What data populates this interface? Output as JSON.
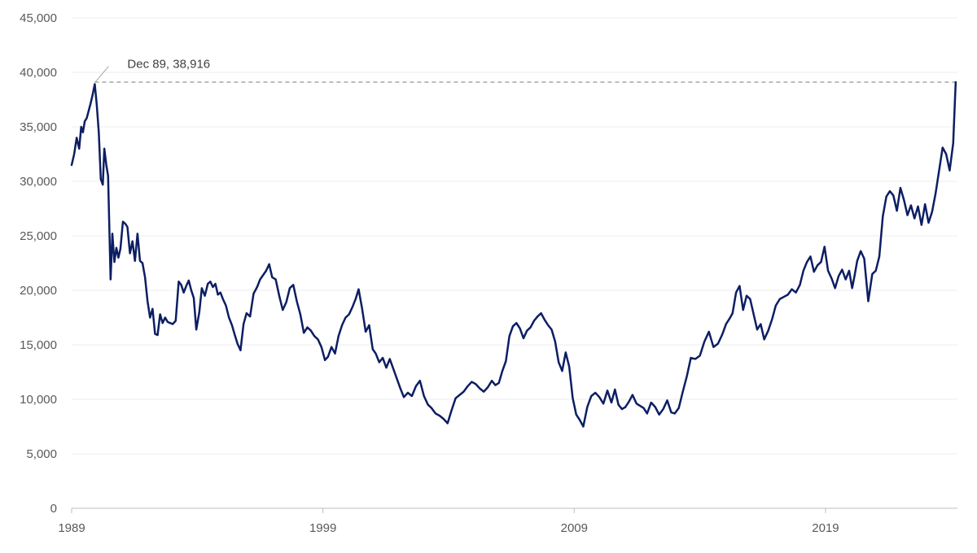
{
  "chart_data": {
    "type": "line",
    "title": "",
    "xlabel": "",
    "ylabel": "",
    "xlim": [
      1989.0,
      2024.25
    ],
    "ylim": [
      0,
      45000
    ],
    "yticks": [
      0,
      5000,
      10000,
      15000,
      20000,
      25000,
      30000,
      35000,
      40000,
      45000
    ],
    "ytick_labels": [
      "0",
      "5,000",
      "10,000",
      "15,000",
      "20,000",
      "25,000",
      "30,000",
      "35,000",
      "40,000",
      "45,000"
    ],
    "xticks": [
      1989,
      1999,
      2009,
      2019
    ],
    "xtick_labels": [
      "1989",
      "1999",
      "2009",
      "2019"
    ],
    "grid": "horizontal",
    "line_color": "#0c1e63",
    "reference_line": {
      "y": 39100,
      "style": "dashed",
      "color": "#a6a6a6"
    },
    "annotation": {
      "text": "Dec 89, 38,916",
      "x": 1989.92,
      "y": 38916
    },
    "series": [
      {
        "x": [
          1989.0,
          1989.1,
          1989.2,
          1989.3,
          1989.38,
          1989.45,
          1989.52,
          1989.6,
          1989.68,
          1989.76,
          1989.84,
          1989.92,
          1990.0,
          1990.08,
          1990.16,
          1990.24,
          1990.3,
          1990.38,
          1990.45,
          1990.55,
          1990.62,
          1990.7,
          1990.78,
          1990.86,
          1990.94,
          1991.04,
          1991.14,
          1991.22,
          1991.32,
          1991.42,
          1991.52,
          1991.62,
          1991.72,
          1991.82,
          1991.92,
          1992.02,
          1992.12,
          1992.22,
          1992.32,
          1992.42,
          1992.52,
          1992.62,
          1992.72,
          1992.82,
          1992.92,
          1993.02,
          1993.14,
          1993.26,
          1993.36,
          1993.46,
          1993.56,
          1993.66,
          1993.76,
          1993.86,
          1993.96,
          1994.08,
          1994.18,
          1994.3,
          1994.42,
          1994.52,
          1994.62,
          1994.72,
          1994.82,
          1994.92,
          1995.02,
          1995.14,
          1995.26,
          1995.38,
          1995.48,
          1995.6,
          1995.72,
          1995.84,
          1995.96,
          1996.1,
          1996.24,
          1996.38,
          1996.5,
          1996.62,
          1996.74,
          1996.86,
          1996.98,
          1997.12,
          1997.26,
          1997.4,
          1997.54,
          1997.68,
          1997.82,
          1997.96,
          1998.1,
          1998.24,
          1998.38,
          1998.52,
          1998.66,
          1998.8,
          1998.94,
          1999.08,
          1999.2,
          1999.34,
          1999.48,
          1999.62,
          1999.76,
          1999.9,
          2000.04,
          2000.18,
          2000.3,
          2000.42,
          2000.56,
          2000.7,
          2000.84,
          2000.98,
          2001.1,
          2001.24,
          2001.38,
          2001.52,
          2001.66,
          2001.8,
          2001.94,
          2002.08,
          2002.22,
          2002.38,
          2002.54,
          2002.7,
          2002.86,
          2003.02,
          2003.18,
          2003.32,
          2003.48,
          2003.64,
          2003.8,
          2003.96,
          2004.12,
          2004.28,
          2004.44,
          2004.6,
          2004.76,
          2004.92,
          2005.08,
          2005.24,
          2005.4,
          2005.56,
          2005.72,
          2005.86,
          2006.0,
          2006.14,
          2006.28,
          2006.42,
          2006.56,
          2006.7,
          2006.84,
          2006.98,
          2007.12,
          2007.26,
          2007.4,
          2007.54,
          2007.68,
          2007.82,
          2007.96,
          2008.1,
          2008.24,
          2008.38,
          2008.52,
          2008.66,
          2008.8,
          2008.94,
          2009.08,
          2009.22,
          2009.36,
          2009.52,
          2009.68,
          2009.84,
          2010.0,
          2010.16,
          2010.32,
          2010.48,
          2010.62,
          2010.76,
          2010.9,
          2011.04,
          2011.18,
          2011.32,
          2011.48,
          2011.62,
          2011.76,
          2011.9,
          2012.06,
          2012.22,
          2012.38,
          2012.54,
          2012.7,
          2012.86,
          2013.0,
          2013.16,
          2013.32,
          2013.48,
          2013.64,
          2013.82,
          2014.0,
          2014.18,
          2014.36,
          2014.54,
          2014.72,
          2014.9,
          2015.04,
          2015.18,
          2015.3,
          2015.44,
          2015.58,
          2015.72,
          2015.86,
          2016.0,
          2016.14,
          2016.28,
          2016.42,
          2016.56,
          2016.72,
          2016.88,
          2017.02,
          2017.18,
          2017.34,
          2017.5,
          2017.66,
          2017.82,
          2017.98,
          2018.12,
          2018.26,
          2018.4,
          2018.54,
          2018.68,
          2018.82,
          2018.96,
          2019.1,
          2019.24,
          2019.38,
          2019.52,
          2019.66,
          2019.8,
          2019.94,
          2020.06,
          2020.16,
          2020.26,
          2020.4,
          2020.54,
          2020.7,
          2020.86,
          2021.0,
          2021.14,
          2021.28,
          2021.42,
          2021.56,
          2021.7,
          2021.84,
          2021.98,
          2022.12,
          2022.26,
          2022.4,
          2022.54,
          2022.68,
          2022.82,
          2022.96,
          2023.1,
          2023.24,
          2023.38,
          2023.52,
          2023.66,
          2023.8,
          2023.94,
          2024.08,
          2024.18
        ],
        "y": [
          31500,
          32500,
          34000,
          33000,
          35000,
          34500,
          35500,
          35800,
          36500,
          37200,
          38000,
          38916,
          37000,
          34500,
          30200,
          29700,
          33000,
          31500,
          30500,
          21000,
          25200,
          22600,
          23900,
          23000,
          23800,
          26300,
          26100,
          25800,
          23400,
          24500,
          22700,
          25200,
          22700,
          22500,
          21200,
          19000,
          17500,
          18300,
          16000,
          15900,
          17800,
          17000,
          17500,
          17100,
          17000,
          16900,
          17200,
          20800,
          20500,
          19800,
          20400,
          20900,
          20000,
          19300,
          16400,
          18000,
          20200,
          19500,
          20600,
          20800,
          20300,
          20600,
          19600,
          19800,
          19200,
          18600,
          17500,
          16800,
          16000,
          15100,
          14500,
          16900,
          17900,
          17600,
          19700,
          20300,
          21000,
          21400,
          21800,
          22400,
          21200,
          21000,
          19500,
          18200,
          18900,
          20200,
          20500,
          19000,
          17800,
          16100,
          16600,
          16300,
          15800,
          15500,
          14800,
          13600,
          13900,
          14800,
          14200,
          15800,
          16800,
          17500,
          17800,
          18500,
          19200,
          20100,
          18300,
          16200,
          16800,
          14600,
          14200,
          13400,
          13800,
          12900,
          13700,
          12800,
          11900,
          11000,
          10200,
          10600,
          10300,
          11200,
          11700,
          10300,
          9500,
          9200,
          8700,
          8500,
          8200,
          7800,
          9000,
          10100,
          10400,
          10700,
          11200,
          11600,
          11400,
          11000,
          10700,
          11100,
          11700,
          11300,
          11500,
          12600,
          13500,
          15800,
          16700,
          17000,
          16500,
          15600,
          16300,
          16600,
          17200,
          17600,
          17900,
          17300,
          16800,
          16400,
          15300,
          13400,
          12600,
          14300,
          13000,
          10100,
          8600,
          8100,
          7500,
          9300,
          10300,
          10600,
          10200,
          9600,
          10800,
          9700,
          10900,
          9500,
          9100,
          9300,
          9800,
          10400,
          9600,
          9400,
          9200,
          8700,
          9700,
          9300,
          8600,
          9100,
          9900,
          8800,
          8700,
          9200,
          10700,
          12100,
          13800,
          13700,
          14000,
          15300,
          16200,
          14800,
          15100,
          16000,
          16900,
          17400,
          17900,
          19800,
          20400,
          18200,
          19500,
          19200,
          17800,
          16400,
          16900,
          15500,
          16300,
          17400,
          18600,
          19200,
          19400,
          19600,
          20100,
          19800,
          20500,
          21800,
          22600,
          23100,
          21700,
          22300,
          22600,
          24000,
          21800,
          21100,
          20200,
          21300,
          21900,
          21000,
          21800,
          20200,
          21400,
          22700,
          23600,
          22900,
          19000,
          21500,
          21800,
          23100,
          26800,
          28600,
          29100,
          28700,
          27300,
          29400,
          28300,
          26900,
          27800,
          26600,
          27700,
          26000,
          27900,
          26200,
          27200,
          28900,
          31000,
          33100,
          32500,
          31000,
          33500,
          39100
        ]
      }
    ]
  }
}
